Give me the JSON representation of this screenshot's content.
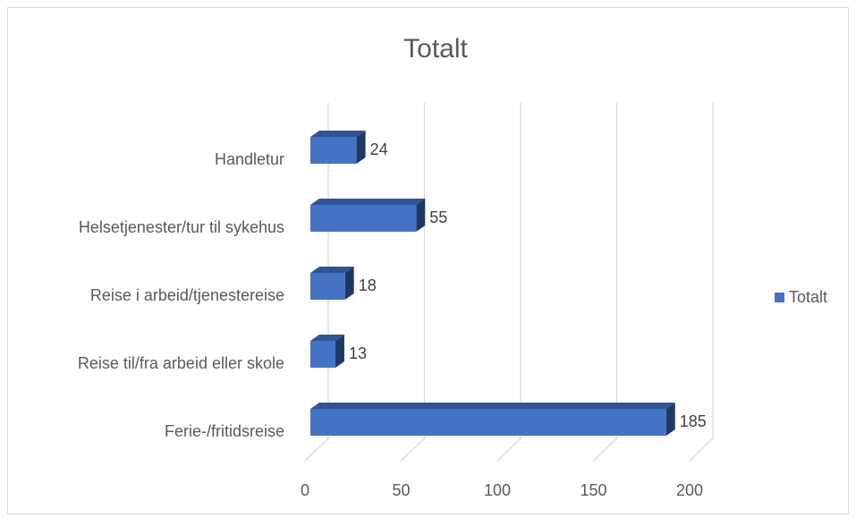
{
  "chart_data": {
    "type": "bar",
    "orientation": "horizontal",
    "title": "Totalt",
    "categories": [
      "Handletur",
      "Helsetjenester/tur til sykehus",
      "Reise i arbeid/tjenestereise",
      "Reise til/fra arbeid eller skole",
      "Ferie-/fritidsreise"
    ],
    "series": [
      {
        "name": "Totalt",
        "color": "#4472c4",
        "values": [
          24,
          55,
          18,
          13,
          185
        ]
      }
    ],
    "xlim": [
      0,
      200
    ],
    "xticks": [
      0,
      50,
      100,
      150,
      200
    ],
    "grid": true,
    "legend": "right"
  }
}
